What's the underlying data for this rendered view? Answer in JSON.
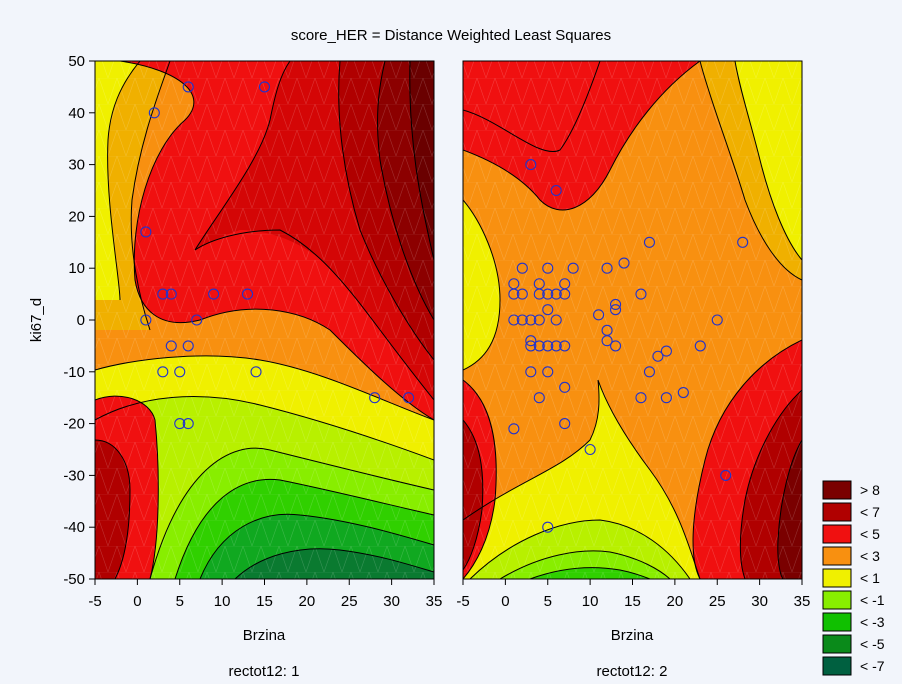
{
  "chart_data": {
    "type": "contour",
    "title": "score_HER = Distance Weighted Least Squares",
    "ylabel": "ki67_d",
    "legend_placement": "bottom-right",
    "xlim": [
      -5,
      35
    ],
    "ylim": [
      -50,
      50
    ],
    "x_ticks": [
      -5,
      0,
      5,
      10,
      15,
      20,
      25,
      30,
      35
    ],
    "y_ticks": [
      -50,
      -40,
      -30,
      -20,
      -10,
      0,
      10,
      20,
      30,
      40,
      50
    ],
    "legend": [
      {
        "label": "> 8",
        "color": "#7a0000"
      },
      {
        "label": "< 7",
        "color": "#b00000"
      },
      {
        "label": "< 5",
        "color": "#f01010"
      },
      {
        "label": "< 3",
        "color": "#f89010"
      },
      {
        "label": "< 1",
        "color": "#f0f000"
      },
      {
        "label": "< -1",
        "color": "#88ee00"
      },
      {
        "label": "< -3",
        "color": "#10c000"
      },
      {
        "label": "< -5",
        "color": "#0a8a1a"
      },
      {
        "label": "< -7",
        "color": "#006040"
      }
    ],
    "panels": [
      {
        "xlabel": "Brzina",
        "caption": "rectot12: 1",
        "points": [
          [
            2,
            40
          ],
          [
            6,
            45
          ],
          [
            15,
            45
          ],
          [
            1,
            17
          ],
          [
            3,
            5
          ],
          [
            4,
            5
          ],
          [
            9,
            5
          ],
          [
            13,
            5
          ],
          [
            1,
            0
          ],
          [
            7,
            0
          ],
          [
            4,
            -5
          ],
          [
            6,
            -5
          ],
          [
            3,
            -10
          ],
          [
            5,
            -10
          ],
          [
            14,
            -10
          ],
          [
            5,
            -20
          ],
          [
            6,
            -20
          ],
          [
            28,
            -15
          ],
          [
            32,
            -15
          ]
        ]
      },
      {
        "xlabel": "Brzina",
        "caption": "rectot12: 2",
        "points": [
          [
            3,
            30
          ],
          [
            6,
            25
          ],
          [
            28,
            15
          ],
          [
            17,
            15
          ],
          [
            2,
            10
          ],
          [
            5,
            10
          ],
          [
            8,
            10
          ],
          [
            12,
            10
          ],
          [
            14,
            11
          ],
          [
            1,
            7
          ],
          [
            4,
            7
          ],
          [
            7,
            7
          ],
          [
            1,
            5
          ],
          [
            2,
            5
          ],
          [
            4,
            5
          ],
          [
            5,
            5
          ],
          [
            6,
            5
          ],
          [
            7,
            5
          ],
          [
            16,
            5
          ],
          [
            5,
            2
          ],
          [
            11,
            1
          ],
          [
            13,
            3
          ],
          [
            13,
            2
          ],
          [
            1,
            0
          ],
          [
            2,
            0
          ],
          [
            3,
            0
          ],
          [
            4,
            0
          ],
          [
            6,
            0
          ],
          [
            25,
            0
          ],
          [
            12,
            -2
          ],
          [
            3,
            -4
          ],
          [
            3,
            -5
          ],
          [
            4,
            -5
          ],
          [
            5,
            -5
          ],
          [
            6,
            -5
          ],
          [
            7,
            -5
          ],
          [
            12,
            -4
          ],
          [
            13,
            -5
          ],
          [
            19,
            -6
          ],
          [
            18,
            -7
          ],
          [
            23,
            -5
          ],
          [
            3,
            -10
          ],
          [
            5,
            -10
          ],
          [
            17,
            -10
          ],
          [
            4,
            -15
          ],
          [
            7,
            -13
          ],
          [
            16,
            -15
          ],
          [
            19,
            -15
          ],
          [
            21,
            -14
          ],
          [
            1,
            -21
          ],
          [
            7,
            -20
          ],
          [
            10,
            -25
          ],
          [
            26,
            -30
          ],
          [
            5,
            -40
          ]
        ]
      }
    ]
  }
}
